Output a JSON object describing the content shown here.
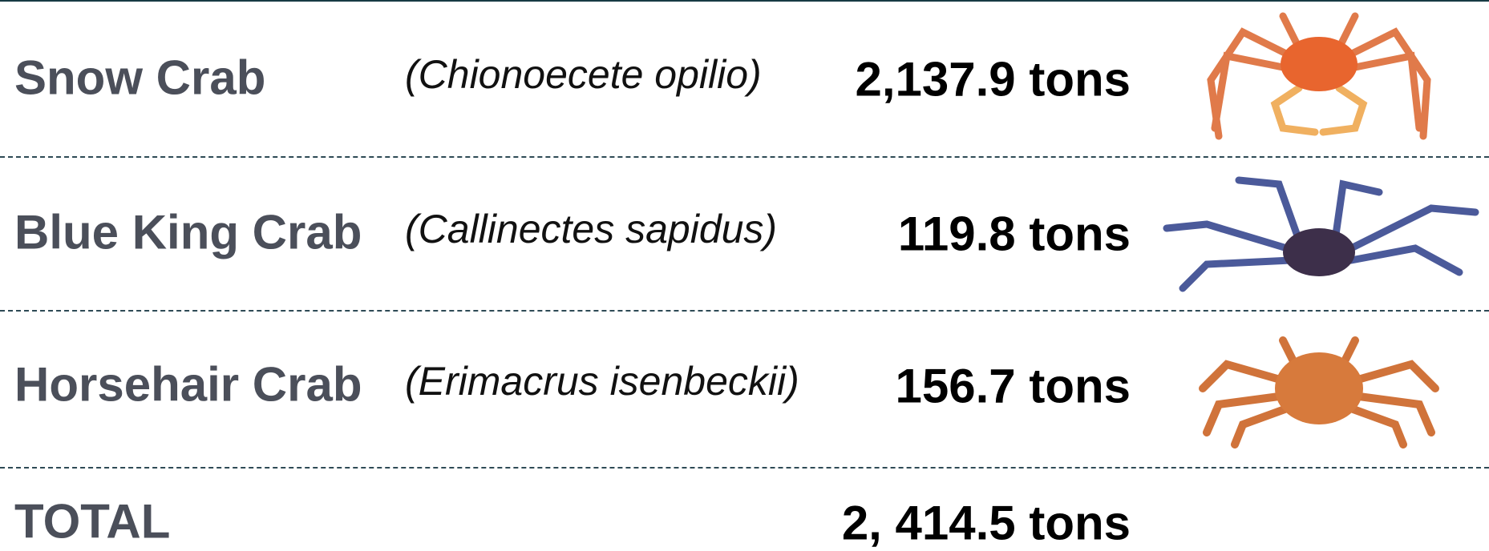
{
  "table": {
    "rows": [
      [
        "Snow Crab",
        "(Chionoecete opilio)",
        "2,137.9 tons"
      ],
      [
        "Blue King Crab",
        "(Callinectes sapidus)",
        "119.8 tons"
      ],
      [
        "Horsehair Crab",
        "(Erimacrus isenbeckii)",
        "156.7 tons"
      ]
    ],
    "total": [
      "TOTAL",
      "2, 414.5 tons"
    ]
  }
}
